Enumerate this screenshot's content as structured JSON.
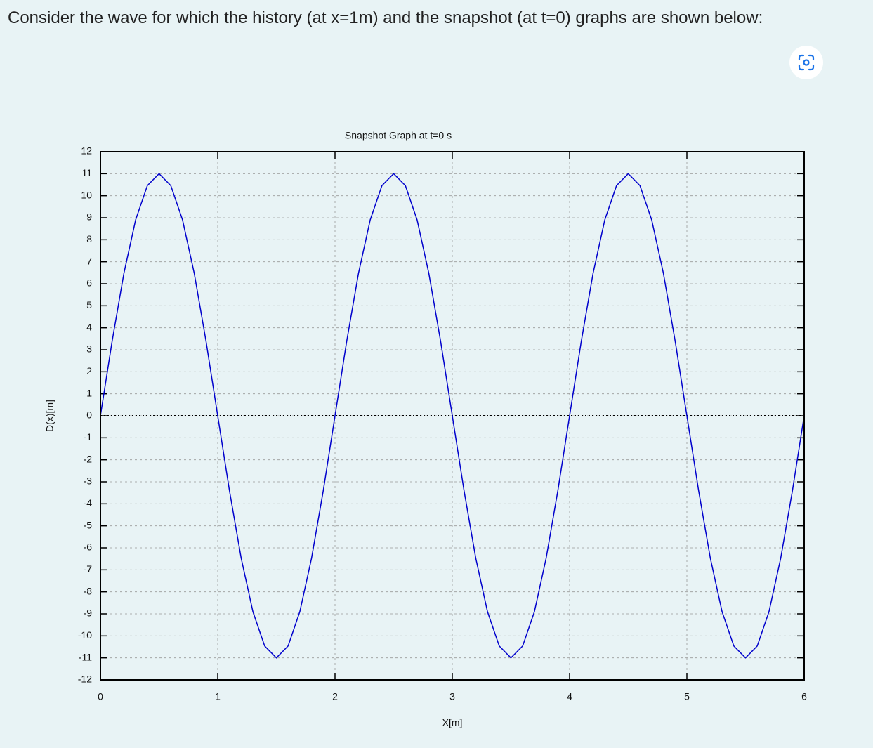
{
  "question": "Consider the wave for which the history (at x=1m) and the snapshot (at t=0) graphs are shown below:",
  "chart_data": {
    "type": "line",
    "title": "Snapshot Graph at t=0 s",
    "xlabel": "X[m]",
    "ylabel": "D(x)[m]",
    "x": [
      0,
      0.1,
      0.2,
      0.3,
      0.4,
      0.5,
      0.6,
      0.7,
      0.8,
      0.9,
      1,
      1.1,
      1.2,
      1.3,
      1.4,
      1.5,
      1.6,
      1.7,
      1.8,
      1.9,
      2,
      2.1,
      2.2,
      2.3,
      2.4,
      2.5,
      2.6,
      2.7,
      2.8,
      2.9,
      3,
      3.1,
      3.2,
      3.3,
      3.4,
      3.5,
      3.6,
      3.7,
      3.8,
      3.9,
      4,
      4.1,
      4.2,
      4.3,
      4.4,
      4.5,
      4.6,
      4.7,
      4.8,
      4.9,
      5,
      5.1,
      5.2,
      5.3,
      5.4,
      5.5,
      5.6,
      5.7,
      5.8,
      5.9,
      6
    ],
    "series": [
      {
        "color": "#0000cc",
        "values": [
          0,
          3.4,
          6.47,
          8.9,
          10.46,
          11,
          10.46,
          8.9,
          6.47,
          3.4,
          0,
          -3.4,
          -6.47,
          -8.9,
          -10.46,
          -11,
          -10.46,
          -8.9,
          -6.47,
          -3.4,
          0,
          3.4,
          6.47,
          8.9,
          10.46,
          11,
          10.46,
          8.9,
          6.47,
          3.4,
          0,
          -3.4,
          -6.47,
          -8.9,
          -10.46,
          -11,
          -10.46,
          -8.9,
          -6.47,
          -3.4,
          0,
          3.4,
          6.47,
          8.9,
          10.46,
          11,
          10.46,
          8.9,
          6.47,
          3.4,
          0,
          -3.4,
          -6.47,
          -8.9,
          -10.46,
          -11,
          -10.46,
          -8.9,
          -6.47,
          -3.4,
          0
        ]
      }
    ],
    "xlim": [
      0,
      6
    ],
    "xticks": [
      0,
      1,
      2,
      3,
      4,
      5,
      6
    ],
    "ylim": [
      -12,
      12
    ],
    "yticks": [
      -12,
      -11,
      -10,
      -9,
      -8,
      -7,
      -6,
      -5,
      -4,
      -3,
      -2,
      -1,
      0,
      1,
      2,
      3,
      4,
      5,
      6,
      7,
      8,
      9,
      10,
      11,
      12
    ],
    "grid": true
  }
}
